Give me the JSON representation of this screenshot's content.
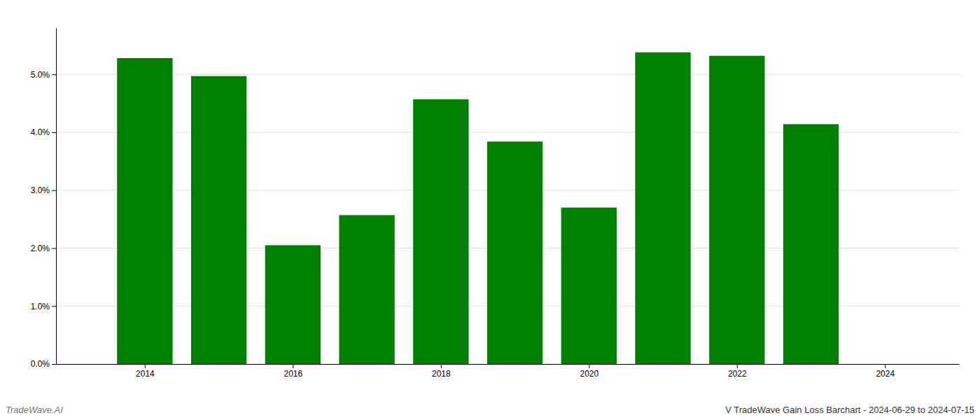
{
  "chart_data": {
    "type": "bar",
    "title": "V TradeWave Gain Loss Barchart - 2024-06-29 to 2024-07-15",
    "annotations": [
      "TradeWave.AI"
    ],
    "x": [
      2014,
      2015,
      2016,
      2017,
      2018,
      2019,
      2020,
      2021,
      2022,
      2023
    ],
    "values": [
      0.0528,
      0.0497,
      0.0205,
      0.0257,
      0.0457,
      0.0384,
      0.027,
      0.0538,
      0.0532,
      0.0414
    ],
    "color": "#008000",
    "xlim": [
      2012.8,
      2025.0
    ],
    "xticks": [
      2014,
      2016,
      2018,
      2020,
      2022,
      2024
    ],
    "ylim": [
      0.0,
      0.058
    ],
    "yticks": [
      {
        "value": 0.0,
        "label": "0.0%"
      },
      {
        "value": 0.01,
        "label": "1.0%"
      },
      {
        "value": 0.02,
        "label": "2.0%"
      },
      {
        "value": 0.03,
        "label": "3.0%"
      },
      {
        "value": 0.04,
        "label": "4.0%"
      },
      {
        "value": 0.05,
        "label": "5.0%"
      }
    ],
    "grid": true
  }
}
